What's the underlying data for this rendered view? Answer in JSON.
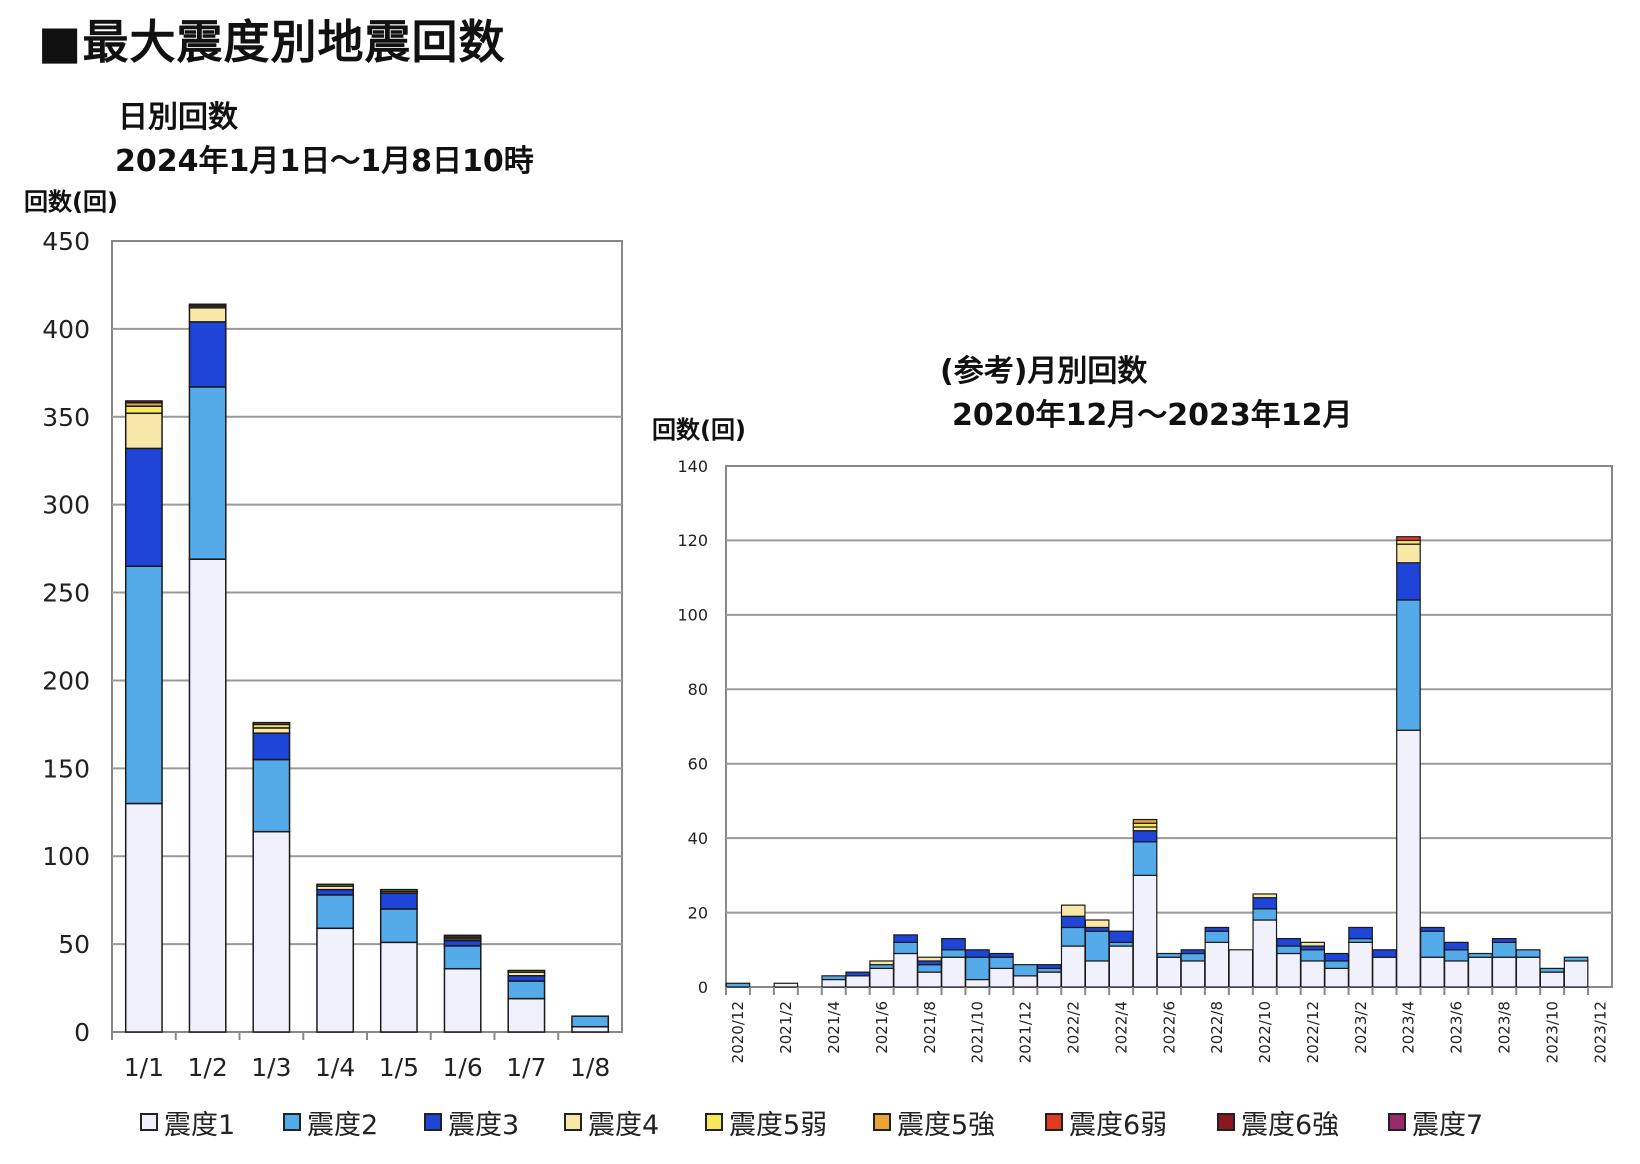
{
  "title": "■最大震度別地震回数",
  "daily": {
    "title": "日別回数",
    "period": "2024年1月1日〜1月8日10時",
    "unit": "回数(回)"
  },
  "monthly": {
    "title": "(参考)月別回数",
    "period": "2020年12月〜2023年12月",
    "unit": "回数(回)"
  },
  "legend": [
    {
      "label": "震度1",
      "color": "#f1f1fb"
    },
    {
      "label": "震度2",
      "color": "#55aaea"
    },
    {
      "label": "震度3",
      "color": "#1e44d8"
    },
    {
      "label": "震度4",
      "color": "#f7e8a8"
    },
    {
      "label": "震度5弱",
      "color": "#f7e85a"
    },
    {
      "label": "震度5強",
      "color": "#eaa23a"
    },
    {
      "label": "震度6弱",
      "color": "#e03a20"
    },
    {
      "label": "震度6強",
      "color": "#8a1820"
    },
    {
      "label": "震度7",
      "color": "#9a2a6a"
    }
  ],
  "chart_data": [
    {
      "type": "bar",
      "stacked": true,
      "ylabel": "回数(回)",
      "ylim": [
        0,
        450
      ],
      "yticks": [
        0,
        50,
        100,
        150,
        200,
        250,
        300,
        350,
        400,
        450
      ],
      "grid": true,
      "categories": [
        "1/1",
        "1/2",
        "1/3",
        "1/4",
        "1/5",
        "1/6",
        "1/7",
        "1/8"
      ],
      "series": [
        {
          "name": "震度1",
          "values": [
            130,
            269,
            114,
            59,
            51,
            36,
            19,
            3
          ]
        },
        {
          "name": "震度2",
          "values": [
            135,
            98,
            41,
            19,
            19,
            13,
            10,
            6
          ]
        },
        {
          "name": "震度3",
          "values": [
            67,
            37,
            15,
            3,
            9,
            3,
            3,
            0
          ]
        },
        {
          "name": "震度4",
          "values": [
            20,
            8,
            3,
            2,
            1,
            1,
            2,
            0
          ]
        },
        {
          "name": "震度5弱",
          "values": [
            4,
            1,
            2,
            1,
            1,
            1,
            1,
            0
          ]
        },
        {
          "name": "震度5強",
          "values": [
            2,
            0,
            1,
            0,
            0,
            0,
            0,
            0
          ]
        },
        {
          "name": "震度6弱",
          "values": [
            0,
            0,
            0,
            0,
            0,
            1,
            0,
            0
          ]
        },
        {
          "name": "震度6強",
          "values": [
            0,
            1,
            0,
            0,
            0,
            0,
            0,
            0
          ]
        },
        {
          "name": "震度7",
          "values": [
            1,
            0,
            0,
            0,
            0,
            0,
            0,
            0
          ]
        }
      ]
    },
    {
      "type": "bar",
      "stacked": true,
      "ylabel": "回数(回)",
      "ylim": [
        0,
        140
      ],
      "yticks": [
        0,
        20,
        40,
        60,
        80,
        100,
        120,
        140
      ],
      "grid": true,
      "categories": [
        "2020/12",
        "2021/1",
        "2021/2",
        "2021/3",
        "2021/4",
        "2021/5",
        "2021/6",
        "2021/7",
        "2021/8",
        "2021/9",
        "2021/10",
        "2021/11",
        "2021/12",
        "2022/1",
        "2022/2",
        "2022/3",
        "2022/4",
        "2022/5",
        "2022/6",
        "2022/7",
        "2022/8",
        "2022/9",
        "2022/10",
        "2022/11",
        "2022/12",
        "2023/1",
        "2023/2",
        "2023/3",
        "2023/4",
        "2023/5",
        "2023/6",
        "2023/7",
        "2023/8",
        "2023/9",
        "2023/10",
        "2023/11",
        "2023/12"
      ],
      "tick_labels": [
        "2020/12",
        "2021/2",
        "2021/4",
        "2021/6",
        "2021/8",
        "2021/10",
        "2021/12",
        "2022/2",
        "2022/4",
        "2022/6",
        "2022/8",
        "2022/10",
        "2022/12",
        "2023/2",
        "2023/4",
        "2023/6",
        "2023/8",
        "2023/10",
        "2023/12"
      ],
      "series": [
        {
          "name": "震度1",
          "values": [
            0,
            0,
            1,
            0,
            2,
            3,
            5,
            9,
            4,
            8,
            2,
            5,
            3,
            4,
            11,
            7,
            11,
            30,
            8,
            7,
            12,
            10,
            18,
            9,
            7,
            5,
            12,
            8,
            69,
            8,
            7,
            8,
            8,
            8,
            4,
            7,
            0
          ]
        },
        {
          "name": "震度2",
          "values": [
            1,
            0,
            0,
            0,
            1,
            0,
            1,
            3,
            2,
            2,
            6,
            3,
            3,
            1,
            5,
            8,
            1,
            9,
            1,
            2,
            3,
            0,
            3,
            2,
            3,
            2,
            1,
            0,
            35,
            7,
            3,
            1,
            4,
            2,
            1,
            1,
            0
          ]
        },
        {
          "name": "震度3",
          "values": [
            0,
            0,
            0,
            0,
            0,
            1,
            0,
            2,
            1,
            3,
            2,
            1,
            0,
            1,
            3,
            1,
            3,
            3,
            0,
            1,
            1,
            0,
            3,
            2,
            1,
            2,
            3,
            2,
            10,
            1,
            2,
            0,
            1,
            0,
            0,
            0,
            0
          ]
        },
        {
          "name": "震度4",
          "values": [
            0,
            0,
            0,
            0,
            0,
            0,
            1,
            0,
            1,
            0,
            0,
            0,
            0,
            0,
            3,
            2,
            0,
            1,
            0,
            0,
            0,
            0,
            1,
            0,
            1,
            0,
            0,
            0,
            5,
            0,
            0,
            0,
            0,
            0,
            0,
            0,
            0
          ]
        },
        {
          "name": "震度5弱",
          "values": [
            0,
            0,
            0,
            0,
            0,
            0,
            0,
            0,
            0,
            0,
            0,
            0,
            0,
            0,
            0,
            0,
            0,
            1,
            0,
            0,
            0,
            0,
            0,
            0,
            0,
            0,
            0,
            0,
            1,
            0,
            0,
            0,
            0,
            0,
            0,
            0,
            0
          ]
        },
        {
          "name": "震度5強",
          "values": [
            0,
            0,
            0,
            0,
            0,
            0,
            0,
            0,
            0,
            0,
            0,
            0,
            0,
            0,
            0,
            0,
            0,
            1,
            0,
            0,
            0,
            0,
            0,
            0,
            0,
            0,
            0,
            0,
            0,
            0,
            0,
            0,
            0,
            0,
            0,
            0,
            0
          ]
        },
        {
          "name": "震度6弱",
          "values": [
            0,
            0,
            0,
            0,
            0,
            0,
            0,
            0,
            0,
            0,
            0,
            0,
            0,
            0,
            0,
            0,
            0,
            0,
            0,
            0,
            0,
            0,
            0,
            0,
            0,
            0,
            0,
            0,
            1,
            0,
            0,
            0,
            0,
            0,
            0,
            0,
            0
          ]
        },
        {
          "name": "震度6強",
          "values": [
            0,
            0,
            0,
            0,
            0,
            0,
            0,
            0,
            0,
            0,
            0,
            0,
            0,
            0,
            0,
            0,
            0,
            0,
            0,
            0,
            0,
            0,
            0,
            0,
            0,
            0,
            0,
            0,
            0,
            0,
            0,
            0,
            0,
            0,
            0,
            0,
            0
          ]
        },
        {
          "name": "震度7",
          "values": [
            0,
            0,
            0,
            0,
            0,
            0,
            0,
            0,
            0,
            0,
            0,
            0,
            0,
            0,
            0,
            0,
            0,
            0,
            0,
            0,
            0,
            0,
            0,
            0,
            0,
            0,
            0,
            0,
            0,
            0,
            0,
            0,
            0,
            0,
            0,
            0,
            0
          ]
        }
      ]
    }
  ]
}
